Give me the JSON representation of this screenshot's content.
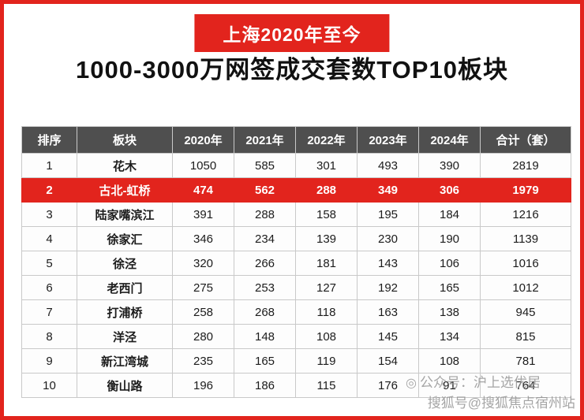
{
  "page": {
    "badge_title": "上海2020年至今",
    "main_title": "1000-3000万网签成交套数TOP10板块"
  },
  "colors": {
    "accent_red": "#e2241d",
    "header_bg": "#4f4f4f",
    "highlight_row_bg": "#e2241d",
    "watermark_gray": "#8f8f8f"
  },
  "watermark": {
    "icon": "◎",
    "line1": "公众号：沪上选优居",
    "line2": "搜狐号@搜狐焦点宿州站"
  },
  "chart_data": {
    "type": "table",
    "title": "上海2020年至今 1000-3000万网签成交套数TOP10板块",
    "columns": [
      "排序",
      "板块",
      "2020年",
      "2021年",
      "2022年",
      "2023年",
      "2024年",
      "合计（套）"
    ],
    "rows": [
      [
        "1",
        "花木",
        "1050",
        "585",
        "301",
        "493",
        "390",
        "2819"
      ],
      [
        "2",
        "古北-虹桥",
        "474",
        "562",
        "288",
        "349",
        "306",
        "1979"
      ],
      [
        "3",
        "陆家嘴滨江",
        "391",
        "288",
        "158",
        "195",
        "184",
        "1216"
      ],
      [
        "4",
        "徐家汇",
        "346",
        "234",
        "139",
        "230",
        "190",
        "1139"
      ],
      [
        "5",
        "徐泾",
        "320",
        "266",
        "181",
        "143",
        "106",
        "1016"
      ],
      [
        "6",
        "老西门",
        "275",
        "253",
        "127",
        "192",
        "165",
        "1012"
      ],
      [
        "7",
        "打浦桥",
        "258",
        "268",
        "118",
        "163",
        "138",
        "945"
      ],
      [
        "8",
        "洋泾",
        "280",
        "148",
        "108",
        "145",
        "134",
        "815"
      ],
      [
        "9",
        "新江湾城",
        "235",
        "165",
        "119",
        "154",
        "108",
        "781"
      ],
      [
        "10",
        "衡山路",
        "196",
        "186",
        "115",
        "176",
        "91",
        "764"
      ]
    ],
    "highlighted_row_index": 1,
    "legend_position": "none",
    "grid": true
  }
}
